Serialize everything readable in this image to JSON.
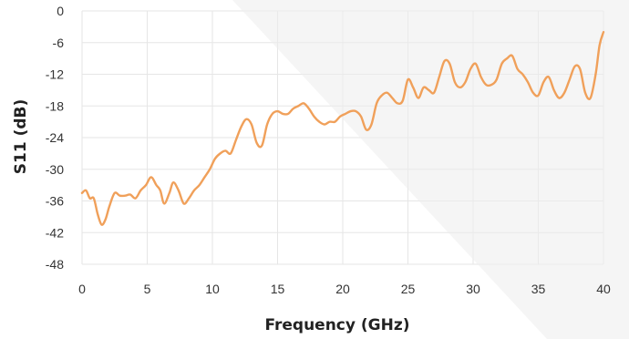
{
  "chart_data": {
    "type": "line",
    "title": "",
    "xlabel": "Frequency (GHz)",
    "ylabel": "S11 (dB)",
    "xlim": [
      0,
      40
    ],
    "ylim": [
      -48,
      0
    ],
    "x_ticks": [
      "0",
      "5",
      "10",
      "15",
      "20",
      "25",
      "30",
      "35",
      "40"
    ],
    "y_ticks": [
      "0",
      "-6",
      "-12",
      "-18",
      "-24",
      "-30",
      "-36",
      "-42",
      "-48"
    ],
    "grid": true,
    "legend": "none",
    "colors": {
      "line": "#f0a05a",
      "grid": "#e6e6e6",
      "plot_background": "#ffffff",
      "shade": "#ededed"
    },
    "series": [
      {
        "x": [
          0,
          0.3,
          0.6,
          0.9,
          1.2,
          1.5,
          1.8,
          2.1,
          2.5,
          2.9,
          3.3,
          3.7,
          4.1,
          4.5,
          4.9,
          5.3,
          5.7,
          6.0,
          6.3,
          6.7,
          7.0,
          7.4,
          7.8,
          8.2,
          8.6,
          9.0,
          9.4,
          9.8,
          10.2,
          10.6,
          11.0,
          11.4,
          11.8,
          12.2,
          12.6,
          13.0,
          13.4,
          13.8,
          14.2,
          14.6,
          15.0,
          15.4,
          15.8,
          16.2,
          16.6,
          17.0,
          17.4,
          17.8,
          18.2,
          18.6,
          19.0,
          19.4,
          19.8,
          20.2,
          20.6,
          21.0,
          21.4,
          21.8,
          22.2,
          22.6,
          23.0,
          23.4,
          23.8,
          24.2,
          24.6,
          25.0,
          25.4,
          25.8,
          26.2,
          26.6,
          27.0,
          27.4,
          27.8,
          28.2,
          28.6,
          29.0,
          29.4,
          29.8,
          30.2,
          30.6,
          31.0,
          31.4,
          31.8,
          32.2,
          32.6,
          33.0,
          33.4,
          33.8,
          34.2,
          34.6,
          35.0,
          35.4,
          35.8,
          36.2,
          36.6,
          37.0,
          37.4,
          37.8,
          38.2,
          38.6,
          39.0,
          39.4,
          39.7,
          40.0
        ],
        "y": [
          -34.5,
          -34.0,
          -35.5,
          -35.5,
          -38.5,
          -40.5,
          -39.5,
          -37.0,
          -34.5,
          -35.0,
          -35.0,
          -34.8,
          -35.5,
          -34.0,
          -33.0,
          -31.5,
          -33.0,
          -34.0,
          -36.5,
          -34.5,
          -32.5,
          -34.0,
          -36.5,
          -35.5,
          -34.0,
          -33.0,
          -31.5,
          -30.0,
          -28.0,
          -27.0,
          -26.5,
          -27.0,
          -24.5,
          -22.0,
          -20.5,
          -21.5,
          -25.0,
          -25.5,
          -21.5,
          -19.5,
          -19.0,
          -19.5,
          -19.5,
          -18.5,
          -18.0,
          -17.5,
          -18.5,
          -20.0,
          -21.0,
          -21.5,
          -21.0,
          -21.0,
          -20.0,
          -19.5,
          -19.0,
          -19.0,
          -20.0,
          -22.5,
          -21.5,
          -17.5,
          -16.0,
          -15.5,
          -16.5,
          -17.5,
          -17.0,
          -13.0,
          -14.5,
          -16.5,
          -14.5,
          -15.0,
          -15.5,
          -12.5,
          -9.5,
          -10.0,
          -13.5,
          -14.5,
          -13.5,
          -11.0,
          -10.0,
          -12.5,
          -14.0,
          -14.0,
          -13.0,
          -10.0,
          -9.0,
          -8.5,
          -11.0,
          -12.0,
          -13.5,
          -15.5,
          -16.0,
          -13.5,
          -12.5,
          -15.0,
          -16.5,
          -15.5,
          -13.0,
          -10.5,
          -11.0,
          -15.5,
          -16.5,
          -12.0,
          -6.5,
          -4.0
        ]
      }
    ]
  }
}
